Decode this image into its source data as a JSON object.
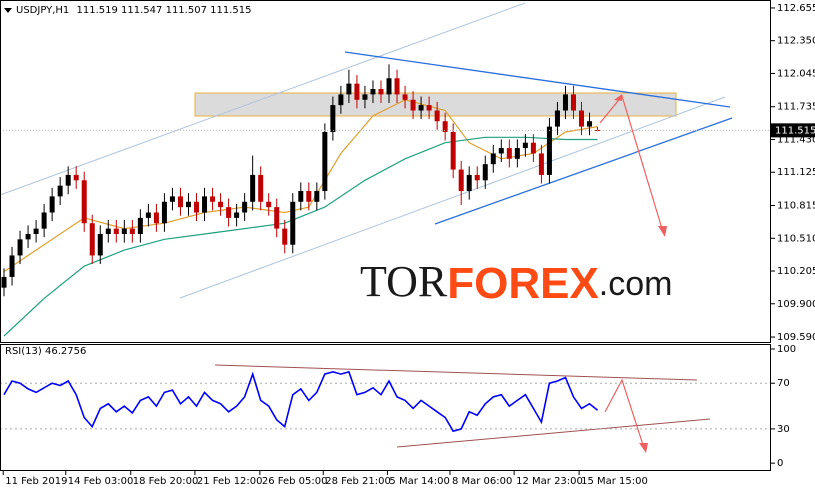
{
  "chart_data": [
    {
      "type": "candlestick",
      "title": "USDJPY,H1",
      "open": [
        110.05,
        110.15,
        110.35,
        110.5,
        110.55,
        110.6,
        110.75,
        110.9,
        111.0,
        111.1,
        111.05,
        110.65,
        110.35,
        110.55,
        110.6,
        110.55,
        110.6,
        110.55,
        110.7,
        110.75,
        110.65,
        110.85,
        110.9,
        110.8,
        110.85,
        110.75,
        110.9,
        110.85,
        110.8,
        110.7,
        110.75,
        110.85,
        111.1,
        110.85,
        110.8,
        110.6,
        110.45,
        110.85,
        110.95,
        110.85,
        110.95,
        111.5,
        111.75,
        111.85,
        111.95,
        111.8,
        111.85,
        111.9,
        111.85,
        112.0,
        111.85,
        111.8,
        111.7,
        111.75,
        111.7,
        111.6,
        111.5,
        111.15,
        110.95,
        111.1,
        111.05,
        111.2,
        111.3,
        111.35,
        111.25,
        111.35,
        111.4,
        111.3,
        111.1,
        111.55,
        111.7,
        111.85,
        111.7,
        111.55,
        111.519
      ],
      "high": [
        110.23,
        110.43,
        110.58,
        110.63,
        110.68,
        110.83,
        110.98,
        111.08,
        111.18,
        111.18,
        111.13,
        110.73,
        110.63,
        110.68,
        110.68,
        110.68,
        110.68,
        110.78,
        110.83,
        110.83,
        110.93,
        110.98,
        110.98,
        110.93,
        110.93,
        110.98,
        110.98,
        110.93,
        110.88,
        110.83,
        110.93,
        111.28,
        111.18,
        110.93,
        110.88,
        110.68,
        110.93,
        111.03,
        111.03,
        111.03,
        111.58,
        111.83,
        111.93,
        112.08,
        112.03,
        111.93,
        111.98,
        111.98,
        112.13,
        112.08,
        111.93,
        111.88,
        111.83,
        111.83,
        111.78,
        111.68,
        111.58,
        111.23,
        111.18,
        111.18,
        111.28,
        111.38,
        111.43,
        111.43,
        111.43,
        111.48,
        111.48,
        111.38,
        111.63,
        111.78,
        111.93,
        111.93,
        111.78,
        111.68,
        111.547
      ],
      "low": [
        109.97,
        110.07,
        110.27,
        110.42,
        110.47,
        110.52,
        110.67,
        110.82,
        110.92,
        110.97,
        110.57,
        110.27,
        110.27,
        110.47,
        110.47,
        110.47,
        110.47,
        110.47,
        110.62,
        110.57,
        110.57,
        110.77,
        110.72,
        110.72,
        110.67,
        110.67,
        110.77,
        110.72,
        110.62,
        110.62,
        110.67,
        110.77,
        110.77,
        110.72,
        110.52,
        110.37,
        110.37,
        110.77,
        110.77,
        110.77,
        110.87,
        111.42,
        111.67,
        111.77,
        111.72,
        111.72,
        111.77,
        111.77,
        111.77,
        111.77,
        111.72,
        111.62,
        111.62,
        111.62,
        111.52,
        111.42,
        111.07,
        110.82,
        110.87,
        110.97,
        110.97,
        111.12,
        111.22,
        111.17,
        111.17,
        111.27,
        111.22,
        111.02,
        111.02,
        111.47,
        111.62,
        111.62,
        111.47,
        111.47,
        111.507
      ],
      "close": [
        110.15,
        110.35,
        110.5,
        110.55,
        110.6,
        110.75,
        110.9,
        111.0,
        111.1,
        111.05,
        110.65,
        110.35,
        110.55,
        110.6,
        110.55,
        110.6,
        110.55,
        110.7,
        110.75,
        110.65,
        110.85,
        110.9,
        110.8,
        110.85,
        110.75,
        110.9,
        110.85,
        110.8,
        110.7,
        110.75,
        110.85,
        111.1,
        110.85,
        110.8,
        110.6,
        110.45,
        110.85,
        110.95,
        110.85,
        110.95,
        111.5,
        111.75,
        111.85,
        111.95,
        111.8,
        111.85,
        111.9,
        111.85,
        112.0,
        111.85,
        111.8,
        111.7,
        111.75,
        111.7,
        111.6,
        111.5,
        111.15,
        110.95,
        111.1,
        111.05,
        111.2,
        111.3,
        111.35,
        111.25,
        111.35,
        111.4,
        111.3,
        111.1,
        111.55,
        111.7,
        111.85,
        111.7,
        111.55,
        111.6,
        111.515
      ],
      "up_color": "#000000",
      "down_color": "#c00000",
      "moving_averages": [
        {
          "color": "#e0a030",
          "x": [
            0,
            5,
            10,
            15,
            20,
            25,
            30,
            35,
            38,
            42,
            46,
            50,
            55,
            58,
            62,
            66,
            70,
            74
          ],
          "values": [
            110.2,
            110.45,
            110.7,
            110.6,
            110.65,
            110.75,
            110.8,
            110.75,
            110.8,
            111.3,
            111.65,
            111.8,
            111.7,
            111.4,
            111.25,
            111.3,
            111.5,
            111.55
          ]
        },
        {
          "color": "#20a080",
          "x": [
            0,
            5,
            10,
            15,
            20,
            25,
            30,
            35,
            40,
            45,
            50,
            55,
            60,
            65,
            70,
            74
          ],
          "values": [
            109.6,
            109.95,
            110.25,
            110.4,
            110.5,
            110.55,
            110.6,
            110.65,
            110.8,
            111.05,
            111.25,
            111.4,
            111.45,
            111.45,
            111.43,
            111.43
          ]
        }
      ],
      "xlim": [
        0,
        96
      ],
      "ylim": [
        109.544,
        112.729
      ],
      "yticks": [
        112.655,
        {
          "value": 112.35,
          "label": "112.350"
        },
        112.045,
        111.735,
        {
          "value": 111.43,
          "label": "111.430"
        },
        111.125,
        110.815,
        {
          "value": 110.51,
          "label": "110.510"
        },
        110.205,
        {
          "value": 109.9,
          "label": "109.900"
        },
        {
          "value": 109.59,
          "label": "109.590"
        }
      ]
    },
    {
      "type": "line",
      "title": "RSI(13)",
      "series": [
        {
          "color": "#0000ff",
          "values": [
            60,
            72,
            70,
            65,
            62,
            66,
            70,
            68,
            72,
            60,
            40,
            32,
            48,
            52,
            45,
            50,
            44,
            55,
            58,
            50,
            62,
            64,
            52,
            58,
            50,
            62,
            55,
            52,
            45,
            50,
            58,
            78,
            55,
            50,
            38,
            32,
            60,
            65,
            55,
            62,
            78,
            80,
            78,
            80,
            60,
            62,
            66,
            60,
            72,
            58,
            55,
            48,
            55,
            50,
            45,
            40,
            28,
            30,
            45,
            42,
            52,
            58,
            60,
            50,
            55,
            60,
            48,
            36,
            70,
            72,
            75,
            58,
            48,
            52,
            46.2756
          ]
        }
      ],
      "xlim": [
        0,
        96
      ],
      "xticks": [
        {
          "value": 0.4,
          "label": "11 Feb 2019"
        },
        {
          "value": 8.2,
          "label": "14 Feb 03:00"
        },
        {
          "value": 16.3,
          "label": "18 Feb 20:00"
        },
        {
          "value": 24.3,
          "label": "21 Feb 12:00"
        },
        {
          "value": 32.4,
          "label": "26 Feb 05:00"
        },
        {
          "value": 40.3,
          "label": "28 Feb 21:00"
        },
        {
          "value": 48.3,
          "label": "5 Mar 14:00"
        },
        {
          "value": 56.1,
          "label": "8 Mar 06:00"
        },
        {
          "value": 64.1,
          "label": "12 Mar 23:00"
        },
        {
          "value": 72.2,
          "label": "15 Mar 15:00"
        }
      ],
      "ylim": [
        -6,
        103.5
      ],
      "yticks": [
        100,
        70,
        30,
        0
      ],
      "levels": [
        70,
        30
      ]
    }
  ],
  "watermark": {
    "parts": [
      {
        "text": "TOR",
        "color": "#1a1a1a"
      },
      {
        "text": "FOREX",
        "color": "#ff4a14"
      },
      {
        "text": ".com",
        "color": "#1a1a1a"
      }
    ]
  }
}
